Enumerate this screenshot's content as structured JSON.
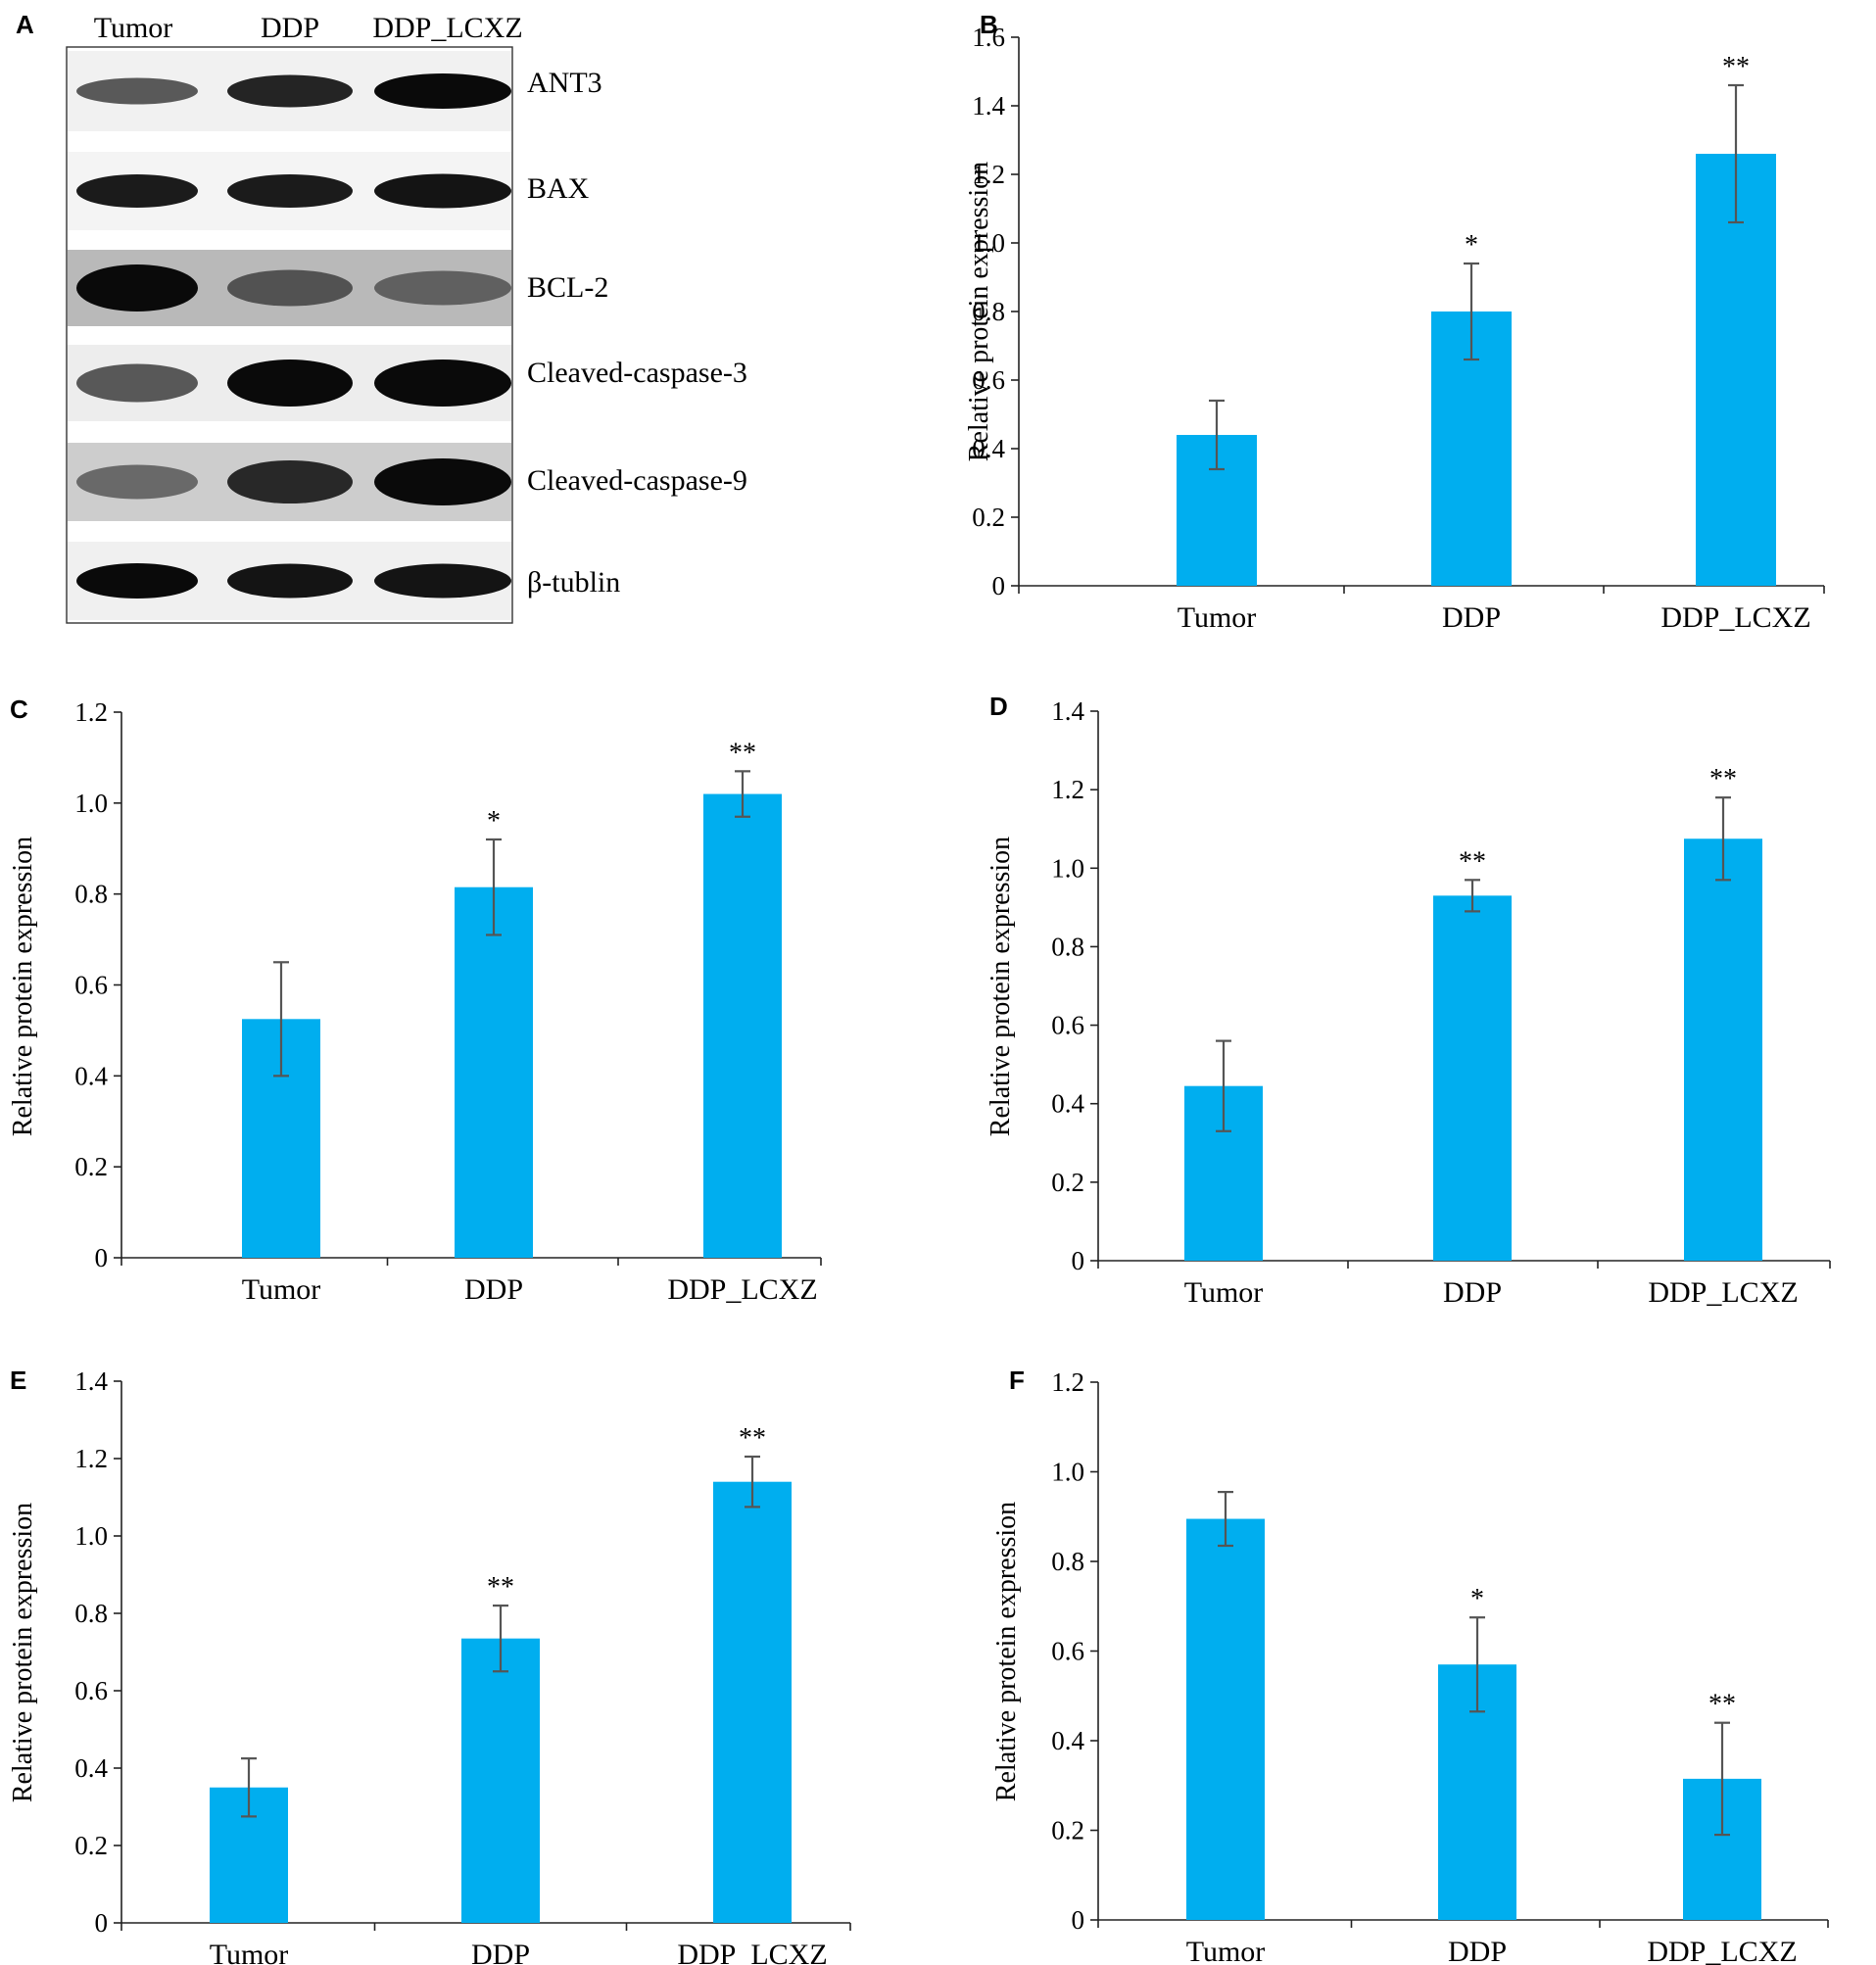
{
  "blot": {
    "panel_label": "A",
    "columns": [
      "Tumor",
      "DDP",
      "DDP_LCXZ"
    ],
    "bands": [
      {
        "label": "ANT3",
        "intensity": [
          0.55,
          0.85,
          1.0
        ]
      },
      {
        "label": "BAX",
        "intensity": [
          0.9,
          0.9,
          0.95
        ]
      },
      {
        "label": "BCL-2",
        "intensity": [
          1.0,
          0.45,
          0.35
        ]
      },
      {
        "label": "Cleaved-caspase-3",
        "intensity": [
          0.55,
          1.0,
          1.0
        ]
      },
      {
        "label": "Cleaved-caspase-9",
        "intensity": [
          0.35,
          0.8,
          1.0
        ]
      },
      {
        "label": "β-tublin",
        "intensity": [
          1.0,
          0.95,
          0.95
        ]
      }
    ]
  },
  "chart_data": [
    {
      "panel_label": "B",
      "type": "bar",
      "categories": [
        "Tumor",
        "DDP",
        "DDP_LCXZ"
      ],
      "values": [
        0.44,
        0.8,
        1.26
      ],
      "errors": [
        0.1,
        0.14,
        0.2
      ],
      "significance": [
        "",
        "*",
        "**"
      ],
      "ylabel": "Relative protein expression",
      "ylim": [
        0,
        1.6
      ],
      "yticks": [
        "0",
        "0.2",
        "0.4",
        "0.6",
        "0.8",
        "1.0",
        "1.2",
        "1.4",
        "1.6"
      ]
    },
    {
      "panel_label": "C",
      "type": "bar",
      "categories": [
        "Tumor",
        "DDP",
        "DDP_LCXZ"
      ],
      "values": [
        0.525,
        0.815,
        1.02
      ],
      "errors": [
        0.125,
        0.105,
        0.05
      ],
      "significance": [
        "",
        "*",
        "**"
      ],
      "ylabel": "Relative protein expression",
      "ylim": [
        0,
        1.2
      ],
      "yticks": [
        "0",
        "0.2",
        "0.4",
        "0.6",
        "0.8",
        "1.0",
        "1.2"
      ]
    },
    {
      "panel_label": "D",
      "type": "bar",
      "categories": [
        "Tumor",
        "DDP",
        "DDP_LCXZ"
      ],
      "values": [
        0.445,
        0.93,
        1.075
      ],
      "errors": [
        0.115,
        0.04,
        0.105
      ],
      "significance": [
        "",
        "**",
        "**"
      ],
      "ylabel": "Relative protein expression",
      "ylim": [
        0,
        1.4
      ],
      "yticks": [
        "0",
        "0.2",
        "0.4",
        "0.6",
        "0.8",
        "1.0",
        "1.2",
        "1.4"
      ]
    },
    {
      "panel_label": "E",
      "type": "bar",
      "categories": [
        "Tumor",
        "DDP",
        "DDP_LCXZ"
      ],
      "values": [
        0.35,
        0.735,
        1.14
      ],
      "errors": [
        0.075,
        0.085,
        0.065
      ],
      "significance": [
        "",
        "**",
        "**"
      ],
      "ylabel": "Relative protein expression",
      "ylim": [
        0,
        1.4
      ],
      "yticks": [
        "0",
        "0.2",
        "0.4",
        "0.6",
        "0.8",
        "1.0",
        "1.2",
        "1.4"
      ]
    },
    {
      "panel_label": "F",
      "type": "bar",
      "categories": [
        "Tumor",
        "DDP",
        "DDP_LCXZ"
      ],
      "values": [
        0.895,
        0.57,
        0.315
      ],
      "errors": [
        0.06,
        0.105,
        0.125
      ],
      "significance": [
        "",
        "*",
        "**"
      ],
      "ylabel": "Relative protein expression",
      "ylim": [
        0,
        1.2
      ],
      "yticks": [
        "0",
        "0.2",
        "0.4",
        "0.6",
        "0.8",
        "1.0",
        "1.2"
      ]
    }
  ],
  "colors": {
    "bar": "#00AEEF",
    "error_bar": "#555555",
    "axis": "#222222",
    "band_dark": "#0a0a0a"
  }
}
